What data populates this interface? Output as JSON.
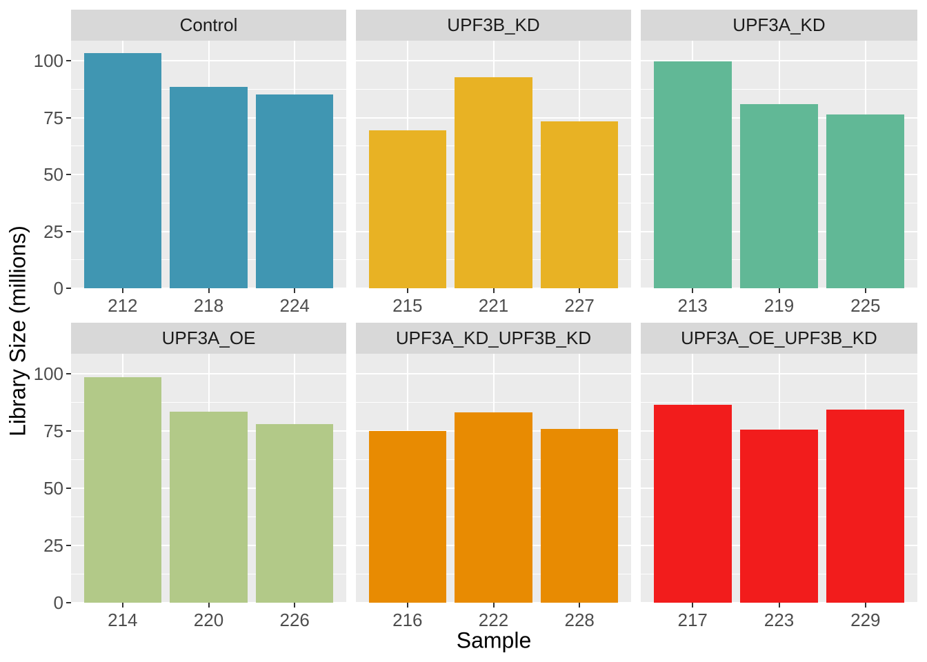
{
  "chart_data": {
    "type": "bar",
    "title": "",
    "xlabel": "Sample",
    "ylabel": "Library Size (millions)",
    "ylim": [
      0,
      108.8
    ],
    "yticks": [
      0,
      25,
      50,
      75,
      100
    ],
    "yticks_minor": [
      12.5,
      37.5,
      62.5,
      87.5
    ],
    "grid": "on",
    "legend": "none",
    "facet_layout": {
      "rows": 2,
      "cols": 3
    },
    "facets": [
      {
        "label": "Control",
        "color": "#4096b2",
        "categories": [
          "212",
          "218",
          "224"
        ],
        "values": [
          103.4,
          88.5,
          85.1
        ]
      },
      {
        "label": "UPF3B_KD",
        "color": "#e8b224",
        "categories": [
          "215",
          "221",
          "227"
        ],
        "values": [
          69.3,
          92.7,
          73.3
        ]
      },
      {
        "label": "UPF3A_KD",
        "color": "#61b896",
        "categories": [
          "213",
          "219",
          "225"
        ],
        "values": [
          99.8,
          80.8,
          76.5
        ]
      },
      {
        "label": "UPF3A_OE",
        "color": "#b2c988",
        "categories": [
          "214",
          "220",
          "226"
        ],
        "values": [
          98.7,
          83.5,
          78.0
        ]
      },
      {
        "label": "UPF3A_KD_UPF3B_KD",
        "color": "#e88b02",
        "categories": [
          "216",
          "222",
          "228"
        ],
        "values": [
          74.9,
          83.2,
          75.8
        ]
      },
      {
        "label": "UPF3A_OE_UPF3B_KD",
        "color": "#f21c1c",
        "categories": [
          "217",
          "223",
          "229"
        ],
        "values": [
          86.6,
          75.6,
          84.3
        ]
      }
    ],
    "theme": {
      "panel_bg": "#ebebeb",
      "strip_bg": "#d8d8d8",
      "grid_color": "#ffffff",
      "axis_text_color": "#4d4d4d",
      "strip_text_color": "#1a1a1a",
      "title_color": "#000000",
      "tick_mark_color": "#333333"
    }
  }
}
